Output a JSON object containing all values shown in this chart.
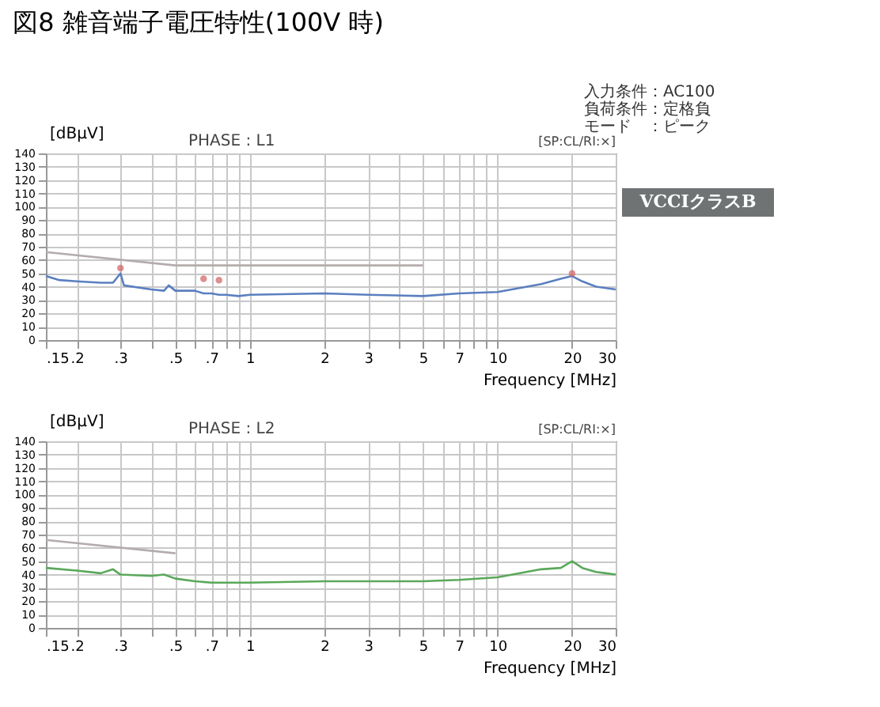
{
  "chart_data": [
    {
      "type": "line",
      "log": "x",
      "title": "図8 雑音端子電圧特性(100V 時)",
      "subtitle": "PHASE : L1",
      "ylabel": "[dBμV]",
      "xlabel": "Frequency [MHz]",
      "annotations": [
        "[SP:CL/RI:×]",
        "入力条件：AC100",
        "負荷条件：定格負",
        "モード　：ピーク",
        "VCCIクラスB"
      ],
      "xlim": [
        0.15,
        30
      ],
      "ylim": [
        0,
        140
      ],
      "xticks": [
        {
          "value": 0.15,
          "label": ".15"
        },
        {
          "value": 0.2,
          "label": ".2"
        },
        {
          "value": 0.3,
          "label": ".3"
        },
        {
          "value": 0.4,
          "label": null
        },
        {
          "value": 0.5,
          "label": ".5"
        },
        {
          "value": 0.6,
          "label": null
        },
        {
          "value": 0.7,
          "label": ".7"
        },
        {
          "value": 0.8,
          "label": null
        },
        {
          "value": 0.9,
          "label": null
        },
        1,
        2,
        3,
        {
          "value": 4,
          "label": null
        },
        5,
        {
          "value": 6,
          "label": null
        },
        7,
        {
          "value": 8,
          "label": null
        },
        {
          "value": 9,
          "label": null
        },
        10,
        20,
        30
      ],
      "yticks": [
        0,
        10,
        20,
        30,
        40,
        50,
        60,
        70,
        80,
        90,
        100,
        110,
        120,
        130,
        140
      ],
      "grid": true,
      "series": [
        {
          "color": "#b4acac",
          "x": [
            0.15,
            0.5,
            5
          ],
          "values": [
            66,
            56,
            56
          ]
        },
        {
          "color": "#5b7fc0",
          "x": [
            0.15,
            0.17,
            0.2,
            0.25,
            0.28,
            0.3,
            0.31,
            0.4,
            0.45,
            0.47,
            0.5,
            0.6,
            0.65,
            0.7,
            0.75,
            0.8,
            0.9,
            1,
            2,
            3,
            5,
            7,
            10,
            15,
            18,
            20,
            22,
            25,
            30
          ],
          "values": [
            48,
            45,
            44,
            43,
            43,
            50,
            41,
            38,
            37,
            41,
            37,
            37,
            35,
            35,
            34,
            34,
            33,
            34,
            35,
            34,
            33,
            35,
            36,
            42,
            46,
            48,
            44,
            40,
            38
          ]
        },
        {
          "type": "scatter",
          "marker": "circle",
          "color": "#d06060",
          "x": [
            0.3,
            0.65,
            0.75,
            20
          ],
          "values": [
            54,
            46,
            45,
            50
          ]
        }
      ]
    },
    {
      "type": "line",
      "log": "x",
      "subtitle": "PHASE : L2",
      "ylabel": "[dBμV]",
      "xlabel": "Frequency [MHz]",
      "annotations": [
        "[SP:CL/RI:×]"
      ],
      "xlim": [
        0.15,
        30
      ],
      "ylim": [
        0,
        140
      ],
      "xticks": [
        {
          "value": 0.15,
          "label": ".15"
        },
        {
          "value": 0.2,
          "label": ".2"
        },
        {
          "value": 0.3,
          "label": ".3"
        },
        {
          "value": 0.4,
          "label": null
        },
        {
          "value": 0.5,
          "label": ".5"
        },
        {
          "value": 0.6,
          "label": null
        },
        {
          "value": 0.7,
          "label": ".7"
        },
        {
          "value": 0.8,
          "label": null
        },
        {
          "value": 0.9,
          "label": null
        },
        1,
        2,
        3,
        {
          "value": 4,
          "label": null
        },
        5,
        {
          "value": 6,
          "label": null
        },
        7,
        {
          "value": 8,
          "label": null
        },
        {
          "value": 9,
          "label": null
        },
        10,
        20,
        30
      ],
      "yticks": [
        0,
        10,
        20,
        30,
        40,
        50,
        60,
        70,
        80,
        90,
        100,
        110,
        120,
        130,
        140
      ],
      "grid": true,
      "series": [
        {
          "color": "#b4acac",
          "x": [
            0.15,
            0.5
          ],
          "values": [
            66,
            56
          ]
        },
        {
          "color": "#5aa85a",
          "x": [
            0.15,
            0.2,
            0.25,
            0.28,
            0.3,
            0.4,
            0.45,
            0.5,
            0.6,
            0.7,
            0.8,
            1,
            2,
            3,
            5,
            7,
            10,
            15,
            18,
            20,
            22,
            25,
            30
          ],
          "values": [
            45,
            43,
            41,
            44,
            40,
            39,
            40,
            37,
            35,
            34,
            34,
            34,
            35,
            35,
            35,
            36,
            38,
            44,
            45,
            50,
            45,
            42,
            40
          ]
        }
      ]
    }
  ]
}
